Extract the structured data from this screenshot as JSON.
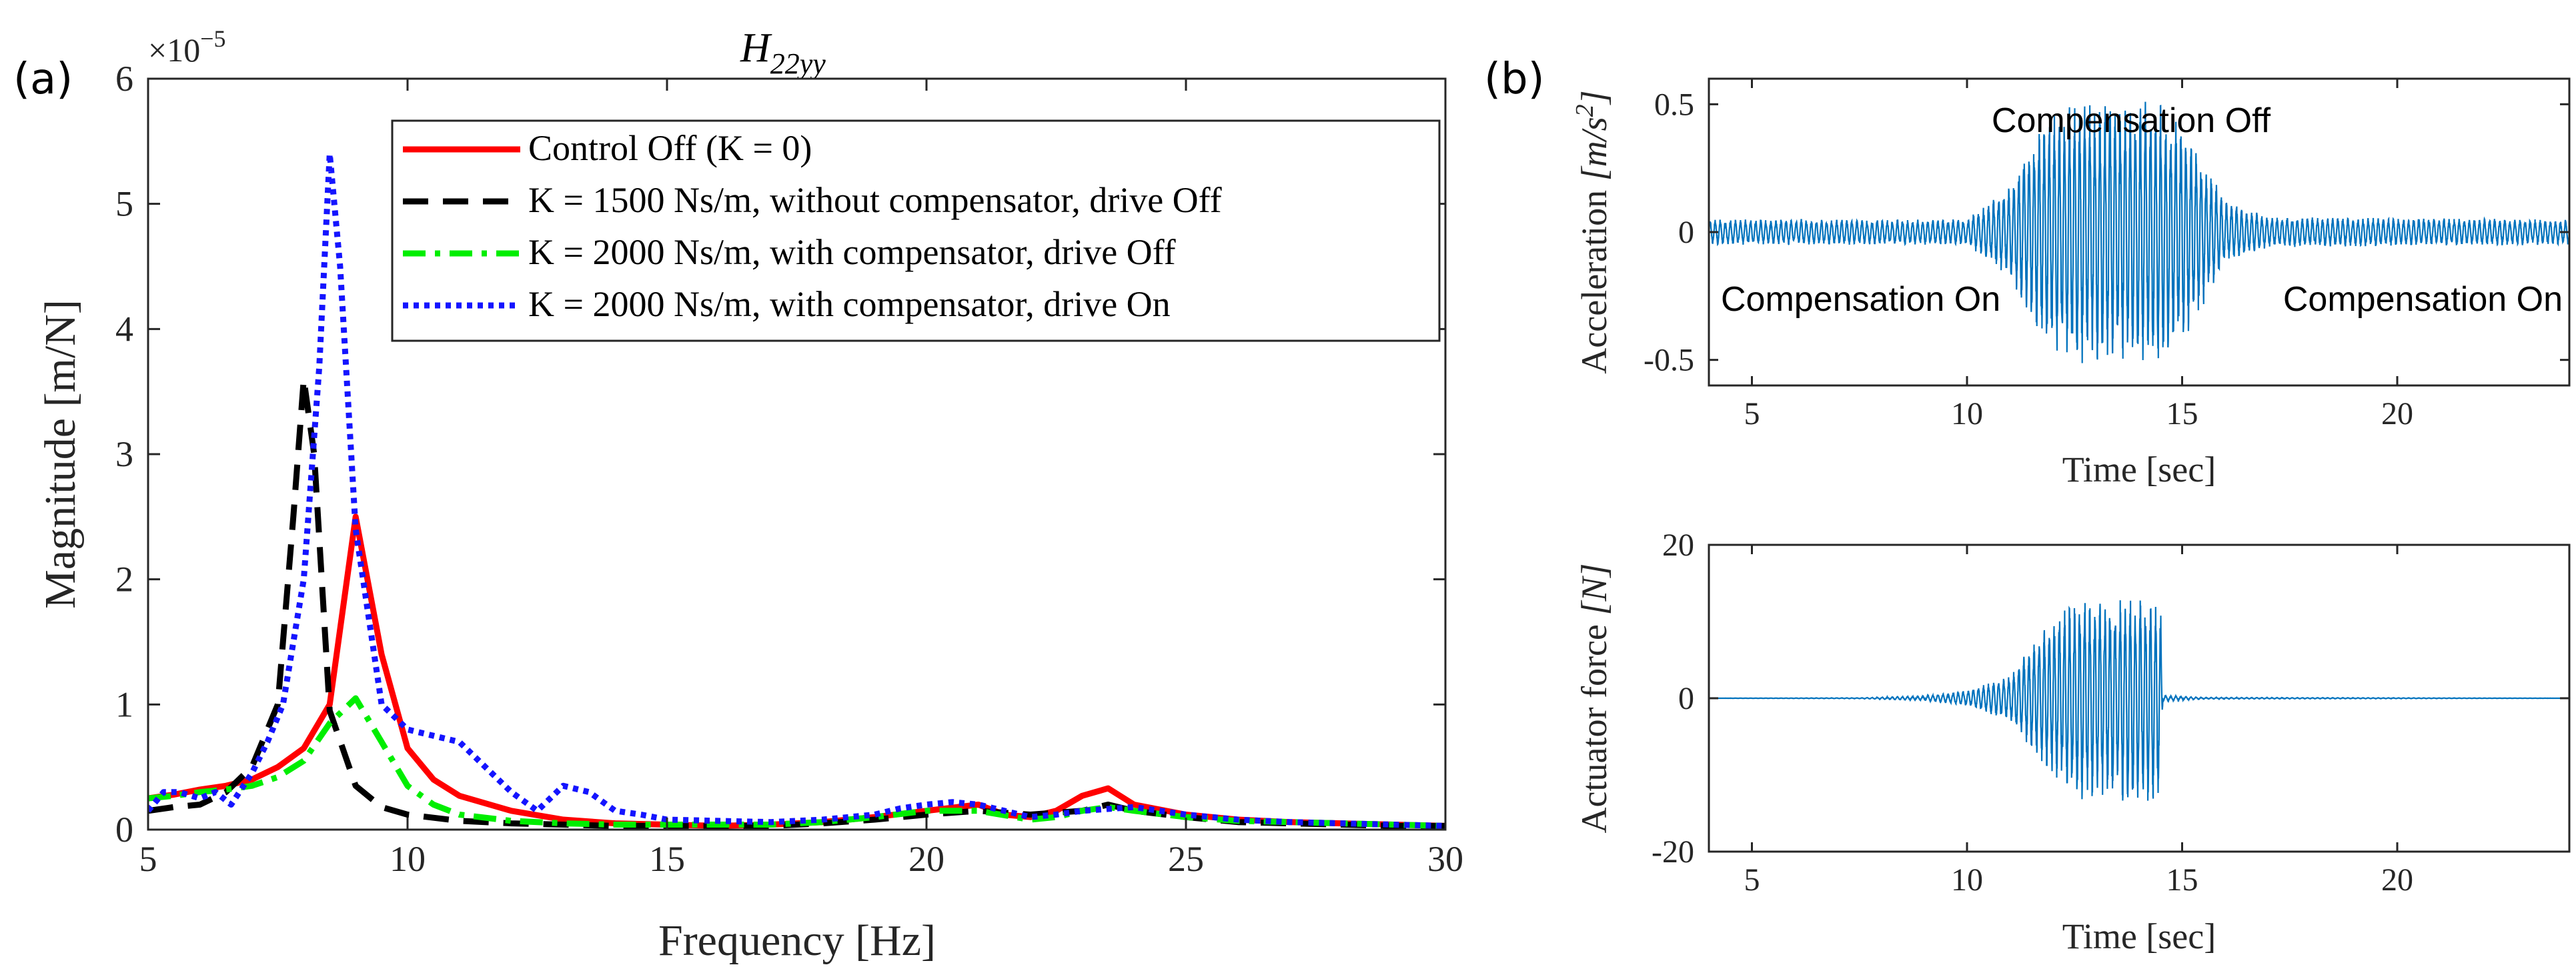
{
  "colors": {
    "control_off": "#ff0000",
    "k1500": "#000000",
    "k2000_off": "#00ee00",
    "k2000_on": "#1414ff",
    "signal": "#0072bd",
    "axis": "#262626"
  },
  "chart_data": [
    {
      "id": "a",
      "panel_label": "(a)",
      "type": "line",
      "title": "H_{22yy}",
      "title_main": "H",
      "title_sub": "22yy",
      "xlabel": "Frequency [Hz]",
      "ylabel": "Magnitude [m/N]",
      "exponent_label": "×10",
      "exponent_power": "−5",
      "xlim": [
        5,
        30
      ],
      "ylim": [
        0,
        6
      ],
      "xticks": [
        5,
        10,
        15,
        20,
        25,
        30
      ],
      "yticks": [
        0,
        1,
        2,
        3,
        4,
        5,
        6
      ],
      "legend_position": "top-right",
      "series": [
        {
          "name": "Control Off (K = 0)",
          "style": "solid",
          "color": "#ff0000",
          "x": [
            5,
            5.5,
            6,
            6.5,
            7,
            7.5,
            8,
            8.5,
            9,
            9.5,
            10,
            10.5,
            11,
            12,
            13,
            14,
            15,
            16,
            17,
            18,
            19,
            20,
            21,
            21.5,
            22,
            22.5,
            23,
            23.5,
            24,
            25,
            26,
            27,
            28,
            29,
            30
          ],
          "y": [
            0.25,
            0.28,
            0.32,
            0.35,
            0.4,
            0.5,
            0.65,
            1.0,
            2.5,
            1.4,
            0.65,
            0.4,
            0.27,
            0.15,
            0.08,
            0.05,
            0.04,
            0.03,
            0.04,
            0.06,
            0.1,
            0.15,
            0.2,
            0.12,
            0.1,
            0.15,
            0.27,
            0.33,
            0.2,
            0.12,
            0.08,
            0.06,
            0.05,
            0.04,
            0.03
          ]
        },
        {
          "name": "K = 1500 Ns/m, without compensator, drive Off",
          "style": "dashed",
          "color": "#000000",
          "x": [
            5,
            5.5,
            6,
            6.5,
            7,
            7.5,
            7.8,
            8.0,
            8.2,
            8.5,
            9,
            9.5,
            10,
            11,
            12,
            13,
            14,
            15,
            16,
            17,
            18,
            19,
            20,
            21,
            22,
            23,
            23.5,
            24,
            25,
            26,
            27,
            28,
            29,
            30
          ],
          "y": [
            0.15,
            0.18,
            0.2,
            0.3,
            0.5,
            1.0,
            2.5,
            3.6,
            3.0,
            0.95,
            0.35,
            0.18,
            0.12,
            0.07,
            0.05,
            0.04,
            0.03,
            0.03,
            0.03,
            0.03,
            0.05,
            0.08,
            0.12,
            0.15,
            0.12,
            0.15,
            0.2,
            0.15,
            0.1,
            0.06,
            0.05,
            0.04,
            0.03,
            0.03
          ]
        },
        {
          "name": "K = 2000 Ns/m, with compensator, drive Off",
          "style": "dashdot",
          "color": "#00ee00",
          "x": [
            5,
            5.5,
            6,
            6.5,
            7,
            7.5,
            8,
            8.5,
            9,
            9.5,
            10,
            10.5,
            11,
            12,
            13,
            14,
            15,
            16,
            17,
            18,
            19,
            20,
            21,
            22,
            22.5,
            23,
            23.5,
            24,
            25,
            26,
            27,
            28,
            29,
            30
          ],
          "y": [
            0.25,
            0.27,
            0.3,
            0.32,
            0.35,
            0.42,
            0.55,
            0.85,
            1.05,
            0.7,
            0.35,
            0.2,
            0.12,
            0.07,
            0.05,
            0.04,
            0.04,
            0.04,
            0.04,
            0.06,
            0.1,
            0.15,
            0.15,
            0.08,
            0.1,
            0.15,
            0.18,
            0.15,
            0.1,
            0.07,
            0.06,
            0.05,
            0.04,
            0.03
          ]
        },
        {
          "name": "K = 2000 Ns/m, with compensator, drive On",
          "style": "dotted",
          "color": "#1414ff",
          "x": [
            5,
            5.3,
            5.6,
            6,
            6.3,
            6.6,
            7,
            7.3,
            7.6,
            8,
            8.3,
            8.5,
            8.7,
            9,
            9.5,
            10,
            10.5,
            11,
            11.5,
            12,
            12.5,
            13,
            13.5,
            14,
            14.5,
            15,
            16,
            17,
            18,
            19,
            19.5,
            20,
            20.5,
            21,
            21.5,
            22,
            22.5,
            23,
            24,
            25,
            26,
            27,
            28,
            29,
            30
          ],
          "y": [
            0.15,
            0.3,
            0.3,
            0.25,
            0.3,
            0.2,
            0.45,
            0.7,
            1.0,
            2.0,
            3.7,
            5.4,
            4.5,
            2.4,
            1.0,
            0.8,
            0.75,
            0.7,
            0.5,
            0.3,
            0.15,
            0.35,
            0.3,
            0.15,
            0.12,
            0.08,
            0.07,
            0.06,
            0.08,
            0.12,
            0.17,
            0.2,
            0.22,
            0.2,
            0.15,
            0.1,
            0.12,
            0.15,
            0.18,
            0.12,
            0.08,
            0.06,
            0.05,
            0.04,
            0.03
          ]
        }
      ]
    },
    {
      "id": "b-top",
      "panel_label": "(b)",
      "type": "line",
      "title": "",
      "xlabel": "Time [sec]",
      "ylabel": "Acceleration [m/s^2]",
      "ylabel_text": "Acceleration ",
      "ylabel_unit": "[m/s",
      "ylabel_unit_power": "2",
      "ylabel_unit_end": "]",
      "xlim": [
        4,
        24
      ],
      "ylim": [
        -0.6,
        0.6
      ],
      "xticks": [
        5,
        10,
        15,
        20
      ],
      "yticks": [
        -0.5,
        0,
        0.5
      ],
      "ytick_labels": [
        "-0.5",
        "0",
        "0.5"
      ],
      "annotations": [
        "Compensation Off",
        "Compensation On",
        "Compensation On"
      ],
      "signal": {
        "description": "oscillation with envelope amplitude over time",
        "envelope_t": [
          4,
          10,
          11,
          11.8,
          12.5,
          14.5,
          15.2,
          16,
          17,
          24
        ],
        "envelope_a": [
          0.05,
          0.05,
          0.18,
          0.45,
          0.52,
          0.52,
          0.38,
          0.12,
          0.06,
          0.05
        ],
        "frequency_hz": 8.5
      }
    },
    {
      "id": "b-bottom",
      "type": "line",
      "title": "",
      "xlabel": "Time [sec]",
      "ylabel": "Actuator force [N]",
      "ylabel_text": "Actuator force ",
      "ylabel_unit": "[N]",
      "xlim": [
        4,
        24
      ],
      "ylim": [
        -20,
        20
      ],
      "xticks": [
        5,
        10,
        15,
        20
      ],
      "yticks": [
        -20,
        0,
        20
      ],
      "ytick_labels": [
        "-20",
        "0",
        "20"
      ],
      "signal": {
        "description": "oscillation with envelope amplitude over time",
        "envelope_t": [
          4,
          7.5,
          9,
          10,
          11,
          11.8,
          12.5,
          14.5,
          14.55,
          15.5,
          24
        ],
        "envelope_a": [
          0.0,
          0.05,
          0.3,
          1.0,
          3.0,
          9.0,
          13.5,
          13.5,
          0.4,
          0.1,
          0.0
        ],
        "frequency_hz": 8.5
      }
    }
  ]
}
